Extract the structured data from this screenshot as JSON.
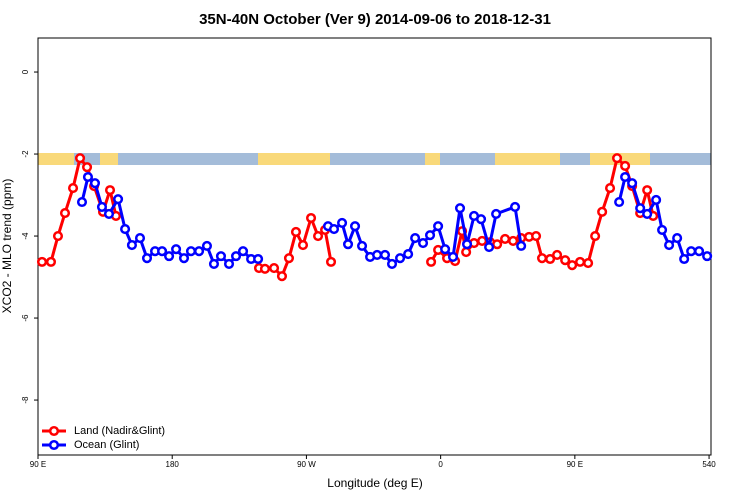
{
  "chart_data": {
    "type": "line",
    "title": "35N-40N October (Ver 9)   2014-09-06 to 2018-12-31",
    "xlabel": "Longitude (deg E)",
    "ylabel": "XCO2 - MLO trend (ppm)",
    "xlim": [
      90,
      541.3
    ],
    "ylim": [
      -9.34,
      0.83
    ],
    "xticks": [
      {
        "value": 90,
        "label": "90 E"
      },
      180,
      {
        "value": 270,
        "label": "90 W"
      },
      {
        "value": 360,
        "label": "0"
      },
      {
        "value": 450,
        "label": "90 E"
      },
      540
    ],
    "yticks": [
      0,
      -2,
      -4,
      -6,
      -8
    ],
    "legend": "bottom-left",
    "series": [
      {
        "name": "Land (Nadir&Glint)",
        "color": "#ff0000",
        "x": [
          92.7,
          98.7,
          103.4,
          108.1,
          113.5,
          118.2,
          122.9,
          127.6,
          133.6,
          138.3,
          142.3,
          null,
          238.2,
          242.2,
          248.3,
          253.6,
          258.3,
          263.0,
          267.7,
          273.1,
          277.8,
          282.5,
          286.5,
          null,
          353.6,
          358.3,
          364.3,
          369.7,
          374.4,
          377.1,
          382.4,
          387.8,
          393.2,
          397.9,
          403.2,
          408.6,
          414.0,
          419.3,
          424.0,
          428.0,
          433.4,
          438.1,
          443.5,
          448.2,
          453.5,
          458.9,
          463.6,
          468.3,
          473.6,
          478.3,
          483.7,
          488.4,
          493.8,
          498.5,
          502.5
        ],
        "values": [
          -4.63,
          -4.63,
          -4.0,
          -3.44,
          -2.83,
          -2.1,
          -2.32,
          -2.78,
          -3.41,
          -2.88,
          -3.51,
          null,
          -4.78,
          -4.8,
          -4.78,
          -4.98,
          -4.54,
          -3.9,
          -4.22,
          -3.56,
          -4.0,
          -3.85,
          -4.63,
          null,
          -4.63,
          -4.34,
          -4.54,
          -4.61,
          -3.88,
          -4.39,
          -4.17,
          -4.12,
          -4.15,
          -4.2,
          -4.07,
          -4.12,
          -4.05,
          -4.02,
          -4.0,
          -4.54,
          -4.56,
          -4.46,
          -4.59,
          -4.71,
          -4.63,
          -4.66,
          -4.0,
          -3.41,
          -2.83,
          -2.1,
          -2.29,
          -2.78,
          -3.44,
          -2.88,
          -3.51
        ]
      },
      {
        "name": "Ocean (Glint)",
        "color": "#0000ff",
        "x": [
          119.5,
          123.5,
          128.2,
          132.9,
          137.6,
          143.7,
          148.4,
          153.0,
          158.4,
          163.1,
          168.5,
          173.2,
          177.9,
          182.6,
          187.9,
          192.6,
          198.0,
          203.3,
          208.0,
          212.7,
          218.1,
          222.8,
          227.5,
          232.9,
          237.6,
          null,
          284.5,
          288.5,
          293.9,
          297.9,
          302.6,
          307.3,
          312.7,
          317.4,
          322.7,
          327.4,
          332.8,
          338.2,
          342.9,
          348.2,
          352.9,
          358.3,
          363.0,
          368.3,
          373.0,
          377.7,
          382.4,
          387.1,
          392.5,
          397.2,
          409.9,
          414.0,
          null,
          479.7,
          483.7,
          488.4,
          493.8,
          498.5,
          504.5,
          508.5,
          513.2,
          518.6,
          523.3,
          528.0,
          533.3,
          538.7
        ],
        "values": [
          -3.17,
          -2.56,
          -2.71,
          -3.29,
          -3.46,
          -3.1,
          -3.83,
          -4.22,
          -4.05,
          -4.54,
          -4.37,
          -4.37,
          -4.49,
          -4.32,
          -4.54,
          -4.37,
          -4.37,
          -4.24,
          -4.68,
          -4.49,
          -4.68,
          -4.49,
          -4.37,
          -4.56,
          -4.56,
          null,
          -3.76,
          -3.83,
          -3.68,
          -4.2,
          -3.76,
          -4.24,
          -4.51,
          -4.46,
          -4.46,
          -4.68,
          -4.54,
          -4.44,
          -4.05,
          -4.17,
          -3.98,
          -3.76,
          -4.32,
          -4.51,
          -3.32,
          -4.2,
          -3.51,
          -3.59,
          -4.27,
          -3.46,
          -3.29,
          -4.24,
          null,
          -3.17,
          -2.56,
          -2.71,
          -3.32,
          -3.46,
          -3.12,
          -3.85,
          -4.22,
          -4.05,
          -4.56,
          -4.37,
          -4.37,
          -4.49
        ]
      }
    ]
  }
}
